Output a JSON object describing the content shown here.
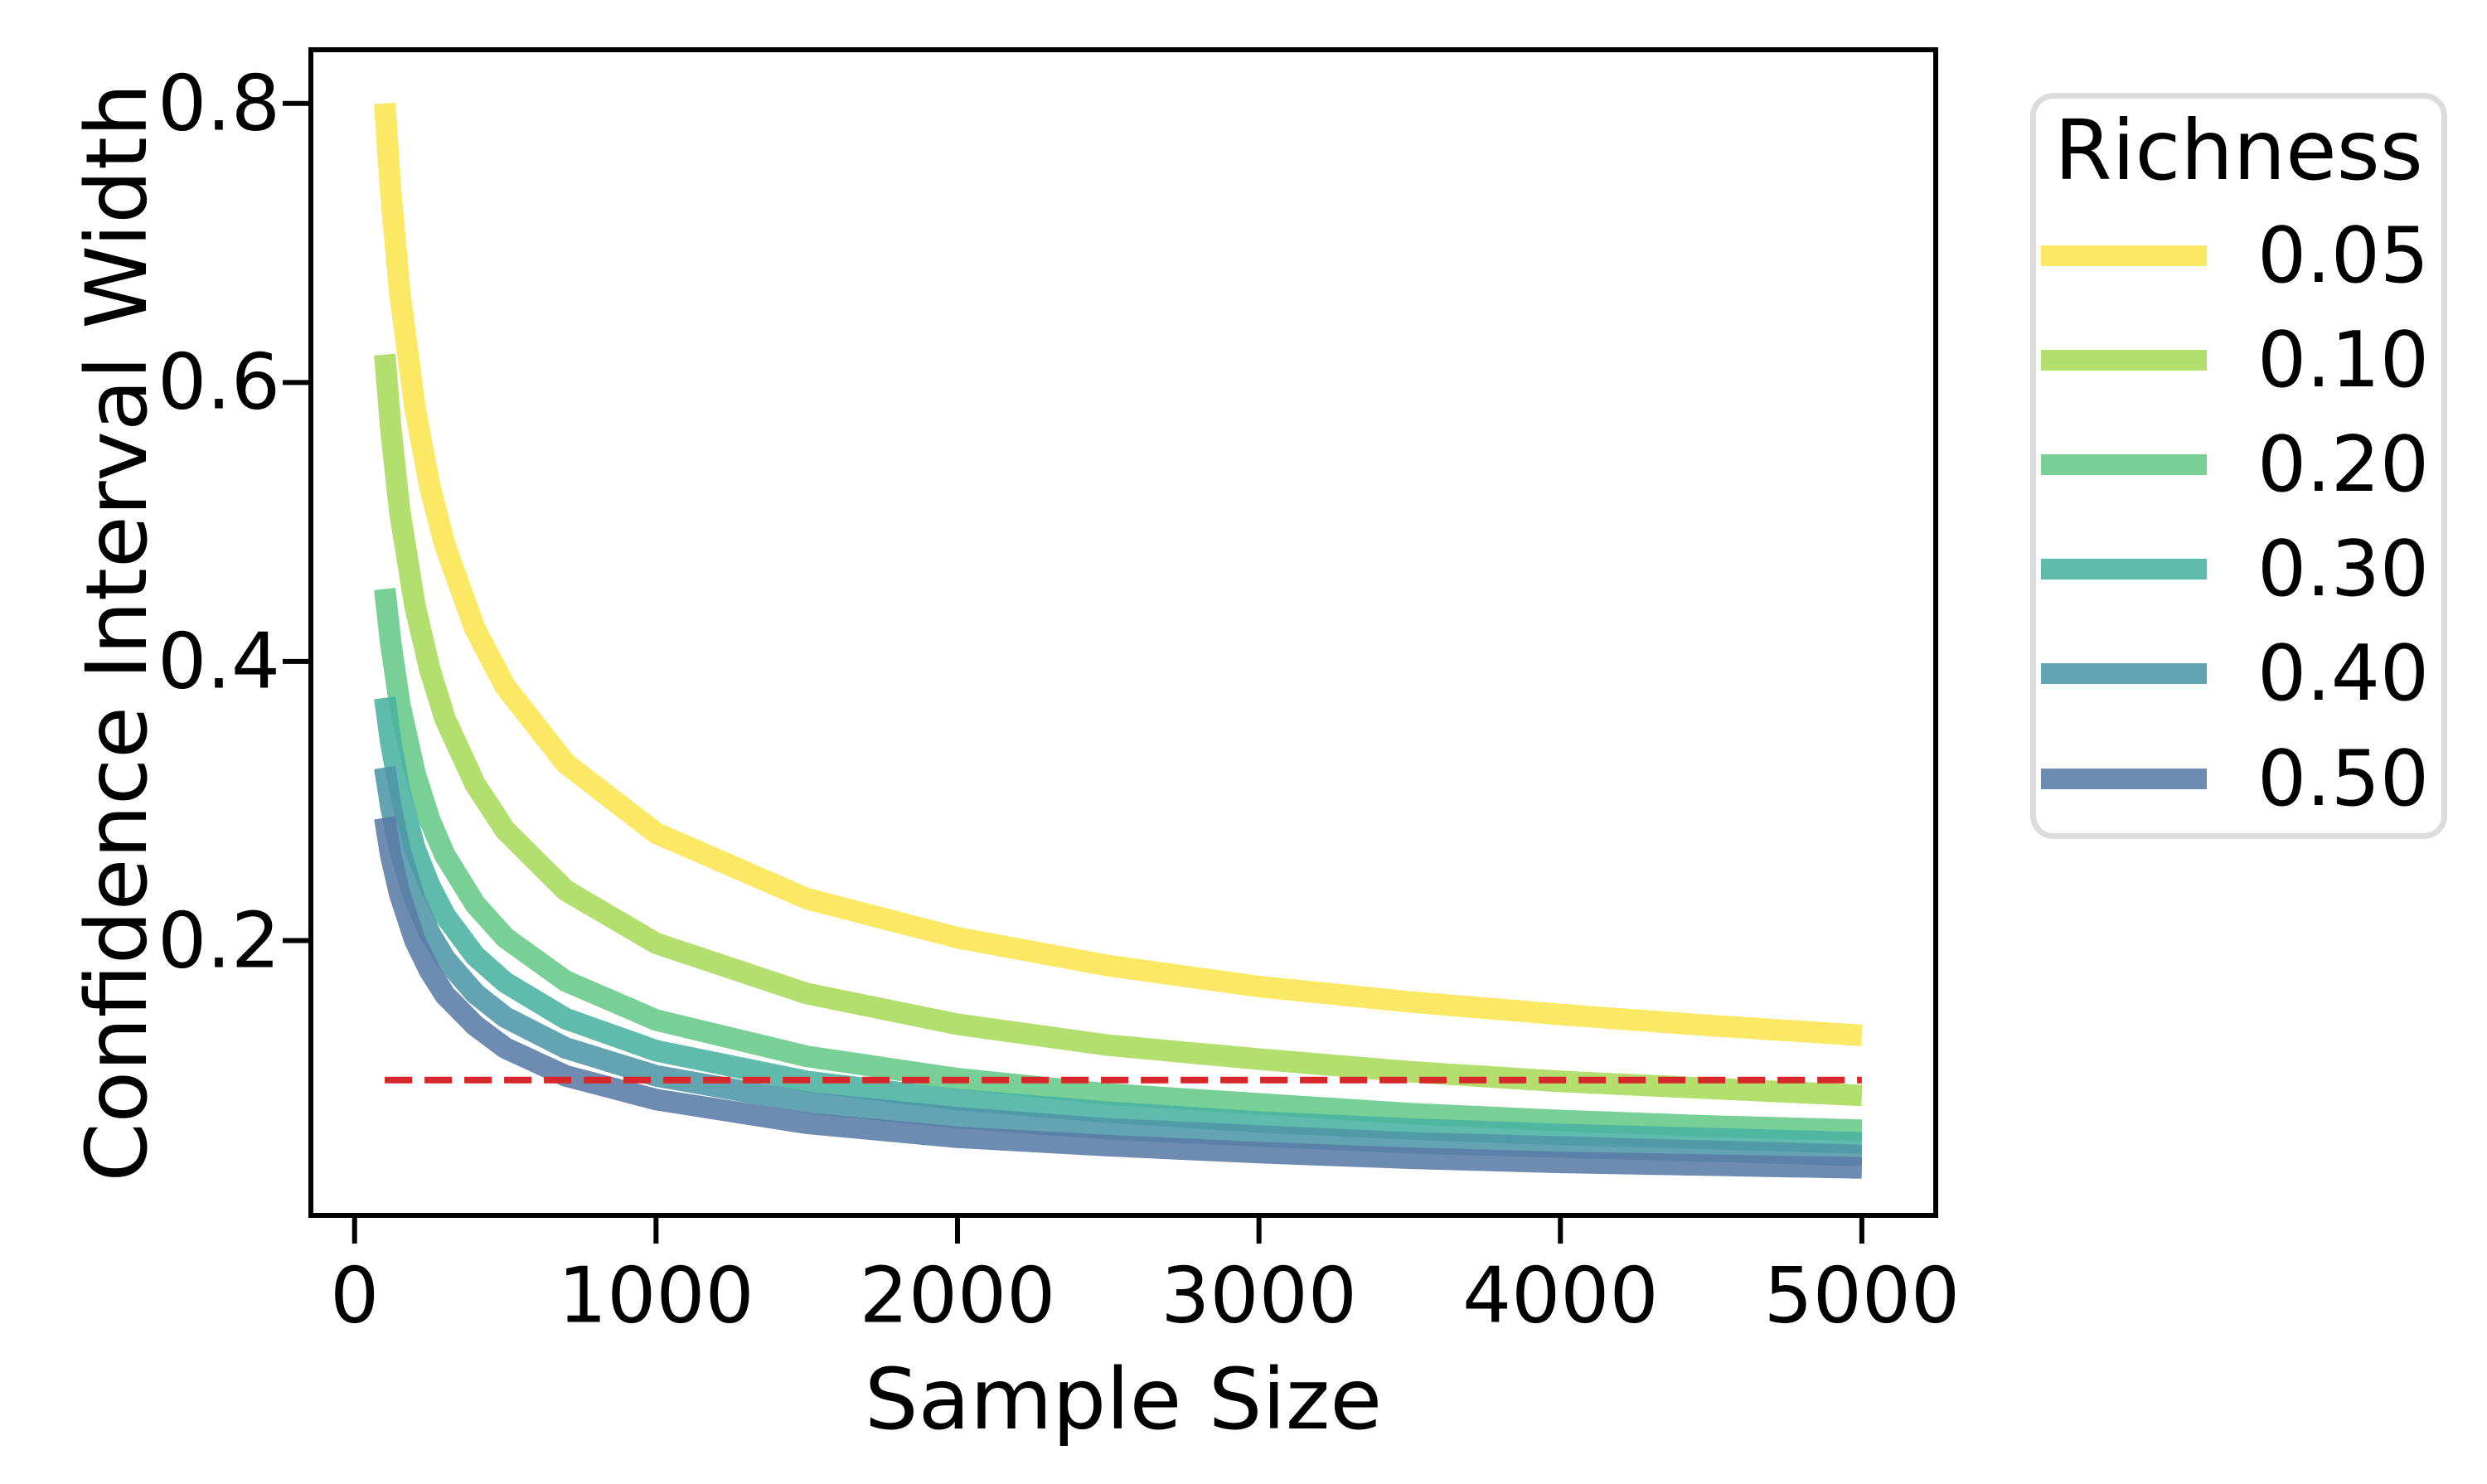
{
  "chart_data": {
    "type": "line",
    "title": "",
    "xlabel": "Sample Size",
    "ylabel": "Confidence Interval Width",
    "x": [
      100,
      120,
      150,
      200,
      250,
      300,
      400,
      500,
      700,
      1000,
      1500,
      2000,
      2500,
      3000,
      3500,
      4000,
      4500,
      5000
    ],
    "series": [
      {
        "name": "0.05",
        "color": "#FBE54E",
        "values": [
          0.8,
          0.736,
          0.664,
          0.582,
          0.525,
          0.483,
          0.423,
          0.382,
          0.327,
          0.277,
          0.23,
          0.202,
          0.182,
          0.167,
          0.156,
          0.147,
          0.139,
          0.132
        ]
      },
      {
        "name": "0.10",
        "color": "#A9DB5B",
        "values": [
          0.62,
          0.567,
          0.507,
          0.44,
          0.394,
          0.359,
          0.312,
          0.279,
          0.236,
          0.198,
          0.162,
          0.14,
          0.125,
          0.115,
          0.106,
          0.099,
          0.094,
          0.089
        ]
      },
      {
        "name": "0.20",
        "color": "#67CA87",
        "values": [
          0.452,
          0.413,
          0.369,
          0.32,
          0.286,
          0.261,
          0.226,
          0.202,
          0.171,
          0.143,
          0.117,
          0.101,
          0.09,
          0.083,
          0.076,
          0.071,
          0.067,
          0.064
        ]
      },
      {
        "name": "0.30",
        "color": "#49B2A0",
        "values": [
          0.374,
          0.342,
          0.307,
          0.266,
          0.239,
          0.218,
          0.189,
          0.17,
          0.144,
          0.121,
          0.099,
          0.086,
          0.077,
          0.07,
          0.065,
          0.061,
          0.058,
          0.055
        ]
      },
      {
        "name": "0.40",
        "color": "#4E96A6",
        "values": [
          0.324,
          0.296,
          0.265,
          0.229,
          0.205,
          0.187,
          0.162,
          0.145,
          0.123,
          0.103,
          0.084,
          0.073,
          0.065,
          0.06,
          0.055,
          0.052,
          0.049,
          0.046
        ]
      },
      {
        "name": "0.50",
        "color": "#5A7CA6",
        "values": [
          0.288,
          0.261,
          0.233,
          0.2,
          0.178,
          0.161,
          0.139,
          0.123,
          0.103,
          0.086,
          0.069,
          0.059,
          0.053,
          0.048,
          0.044,
          0.041,
          0.039,
          0.037
        ]
      }
    ],
    "reference_line": {
      "y": 0.1,
      "color": "#D8272B",
      "style": "dashed",
      "x_start": 100,
      "x_end": 5000
    },
    "legend": {
      "title": "Richness",
      "position": "outside upper right",
      "entries": [
        "0.05",
        "0.10",
        "0.20",
        "0.30",
        "0.40",
        "0.50"
      ]
    },
    "x_ticks": {
      "values": [
        0,
        1000,
        2000,
        3000,
        4000,
        5000
      ],
      "labels": [
        "0",
        "1000",
        "2000",
        "3000",
        "4000",
        "5000"
      ]
    },
    "y_ticks": {
      "values": [
        0.2,
        0.4,
        0.6,
        0.8
      ],
      "labels": [
        "0.2",
        "0.4",
        "0.6",
        "0.8"
      ]
    },
    "xlim": [
      -145,
      5245
    ],
    "ylim": [
      0.003,
      0.8385
    ],
    "grid": false,
    "line_width": 26,
    "line_opacity": 0.88
  },
  "colors": {
    "axis": "#000000",
    "text": "#000000",
    "legend_border": "#DCDCDC",
    "background": "#FFFFFF"
  }
}
